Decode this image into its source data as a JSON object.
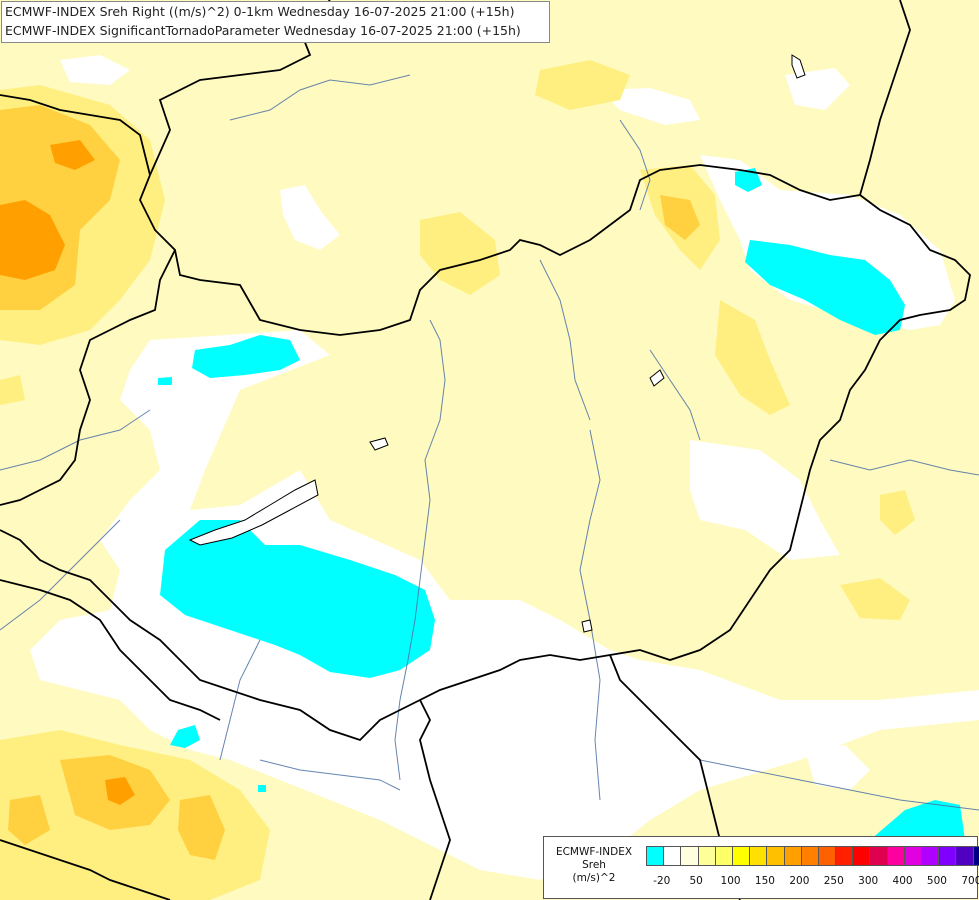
{
  "title": {
    "line1": "ECMWF-INDEX Sreh Right ((m/s)^2) 0-1km Wednesday 16-07-2025 21:00 (+15h)",
    "line2": "ECMWF-INDEX SignificantTornadoParameter Wednesday 16-07-2025 21:00 (+15h)"
  },
  "legend": {
    "line1": "ECMWF-INDEX",
    "line2": "Sreh",
    "line3": "(m/s)^2",
    "colors": [
      "#00ffff",
      "#ffffff",
      "#ffffe0",
      "#ffff99",
      "#ffff66",
      "#ffff00",
      "#ffe000",
      "#ffc000",
      "#ffa000",
      "#ff8000",
      "#ff6000",
      "#ff2000",
      "#ff0000",
      "#e00050",
      "#ff00a0",
      "#e000e0",
      "#b000ff",
      "#8000ff",
      "#5000c0",
      "#000080"
    ],
    "ticks": [
      "-20",
      "50",
      "100",
      "150",
      "200",
      "250",
      "300",
      "400",
      "500",
      "700"
    ]
  },
  "colors": {
    "fill_light": "#fffac0",
    "fill_mid": "#ffef80",
    "fill_dark": "#ffd040",
    "fill_orange": "#ffa000",
    "fill_cyan": "#00ffff",
    "border": "#000000",
    "river": "#4a6fa5"
  }
}
